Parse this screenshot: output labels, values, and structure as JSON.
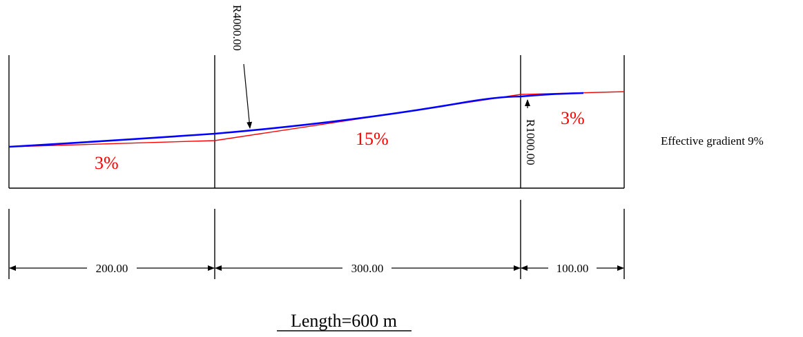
{
  "diagram": {
    "grade_labels": {
      "left": "3%",
      "middle": "15%",
      "right": "3%"
    },
    "curve_labels": {
      "first": "R4000.00",
      "second": "R1000.00"
    },
    "dimensions": {
      "segment_1": "200.00",
      "segment_2": "300.00",
      "segment_3": "100.00"
    },
    "effective_gradient": "Effective gradient 9%",
    "total_length": "Length=600 m"
  },
  "colors": {
    "line": "#000000",
    "grade_line": "#ff0000",
    "vertical_curve": "#0000ff",
    "text_grade": "#ff0000",
    "text": "#000000"
  }
}
